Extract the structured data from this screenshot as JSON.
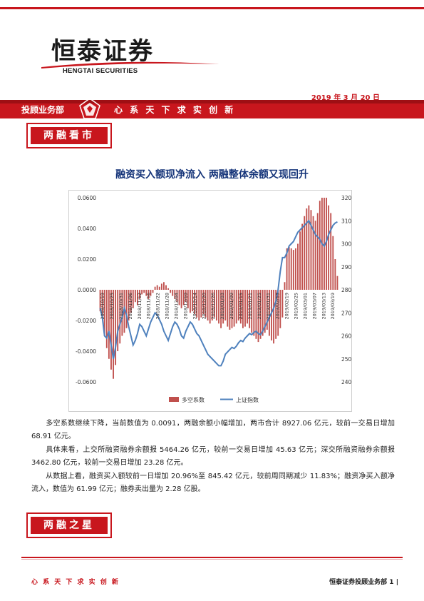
{
  "header": {
    "logo_cn": "恒泰证券",
    "logo_en": "HENGTAI SECURITIES",
    "date": "2019 年 3 月 20 日",
    "dept": "投顾业务部",
    "slogan": "心 系 天 下   求 实 创 新",
    "emblem": "hengtai-emblem-icon",
    "colors": {
      "brand_red": "#c8161d",
      "dark_red": "#9e0f14",
      "title_blue": "#16357a"
    }
  },
  "section1": {
    "title": "两融看市"
  },
  "article": {
    "title": "融资买入额现净流入  两融整体余额又现回升",
    "paragraphs": [
      "多空系数继续下降，当前数值为 0.0091，两融余额小幅增加，两市合计 8927.06 亿元，较前一交易日增加 68.91 亿元。",
      "具体来看，上交所融资融券余额报 5464.26 亿元，较前一交易日增加 45.63 亿元；深交所融资融券余额报 3462.80 亿元，较前一交易日增加 23.28 亿元。",
      "从数据上看，融资买入额较前一日增加 20.96%至 845.42 亿元，较前周同期减少 11.83%；融资净买入额净流入，数值为 61.99 亿元；融券卖出量为 2.28 亿股。"
    ]
  },
  "section2": {
    "title": "两融之星"
  },
  "footer": {
    "left": "心 系 天 下    求 实 创 新",
    "right": "恒泰证券投顾业务部 1 |"
  },
  "chart_data": {
    "type": "bar+line",
    "legend_position": "bottom",
    "grid": false,
    "x_tick_labels": [
      "2018/10/19",
      "2018/10/25",
      "2018/10/31",
      "2018/11/06",
      "2018/11/12",
      "2018/11/16",
      "2018/11/22",
      "2018/11/28",
      "2018/12/04",
      "2018/12/10",
      "2018/12/14",
      "2018/12/20",
      "2018/12/26",
      "2019/01/03",
      "2019/01/09",
      "2019/01/15",
      "2019/01/21",
      "2019/01/25",
      "2019/01/31",
      "2019/02/13",
      "2019/02/19",
      "2019/02/25",
      "2019/03/01",
      "2019/03/07",
      "2019/03/13",
      "2019/03/19"
    ],
    "left_axis": {
      "ylim": [
        -0.06,
        0.06
      ],
      "ticks": [
        "-0.0600",
        "-0.0400",
        "-0.0200",
        "0.0000",
        "0.0200",
        "0.0400",
        "0.0600"
      ]
    },
    "right_axis": {
      "ylim": [
        2400,
        3200
      ],
      "ticks": [
        "2400",
        "2500",
        "2600",
        "2700",
        "2800",
        "2900",
        "3000",
        "3100",
        "3200"
      ]
    },
    "series": [
      {
        "name": "多空系数",
        "type": "bar",
        "axis": "left",
        "color": "#c0504d",
        "values": [
          -0.014,
          -0.018,
          -0.03,
          -0.038,
          -0.045,
          -0.052,
          -0.058,
          -0.049,
          -0.04,
          -0.035,
          -0.03,
          -0.028,
          -0.025,
          -0.02,
          -0.015,
          -0.012,
          -0.008,
          -0.01,
          -0.006,
          -0.003,
          -0.002,
          -0.004,
          -0.006,
          -0.004,
          -0.002,
          0.002,
          0.003,
          0.002,
          0.004,
          0.005,
          0.003,
          0.001,
          -0.002,
          -0.004,
          -0.006,
          -0.008,
          -0.01,
          -0.012,
          -0.01,
          -0.008,
          -0.012,
          -0.015,
          -0.014,
          -0.016,
          -0.018,
          -0.02,
          -0.018,
          -0.016,
          -0.018,
          -0.02,
          -0.022,
          -0.02,
          -0.018,
          -0.02,
          -0.022,
          -0.025,
          -0.022,
          -0.02,
          -0.024,
          -0.026,
          -0.025,
          -0.024,
          -0.022,
          -0.02,
          -0.022,
          -0.025,
          -0.024,
          -0.022,
          -0.025,
          -0.028,
          -0.03,
          -0.032,
          -0.034,
          -0.032,
          -0.03,
          -0.028,
          -0.026,
          -0.03,
          -0.033,
          -0.035,
          -0.032,
          -0.03,
          -0.025,
          -0.018,
          0.005,
          0.027,
          0.028,
          0.027,
          0.026,
          0.027,
          0.03,
          0.038,
          0.043,
          0.048,
          0.053,
          0.055,
          0.052,
          0.048,
          0.045,
          0.05,
          0.058,
          0.06,
          0.06,
          0.06,
          0.055,
          0.05,
          0.035,
          0.02,
          0.009
        ]
      },
      {
        "name": "上证指数",
        "type": "line",
        "axis": "right",
        "color": "#4f81bd",
        "values": [
          2720,
          2680,
          2600,
          2590,
          2620,
          2560,
          2500,
          2550,
          2620,
          2650,
          2680,
          2720,
          2690,
          2640,
          2600,
          2560,
          2580,
          2610,
          2650,
          2640,
          2620,
          2600,
          2630,
          2660,
          2680,
          2700,
          2690,
          2670,
          2650,
          2620,
          2600,
          2580,
          2610,
          2640,
          2660,
          2650,
          2630,
          2600,
          2590,
          2620,
          2640,
          2660,
          2650,
          2630,
          2610,
          2600,
          2580,
          2560,
          2540,
          2520,
          2510,
          2500,
          2490,
          2480,
          2470,
          2470,
          2490,
          2520,
          2530,
          2540,
          2550,
          2545,
          2555,
          2570,
          2580,
          2575,
          2590,
          2600,
          2610,
          2605,
          2615,
          2620,
          2610,
          2605,
          2620,
          2640,
          2660,
          2680,
          2700,
          2720,
          2750,
          2800,
          2880,
          2940,
          2940,
          2960,
          2990,
          3000,
          3010,
          3030,
          3050,
          3060,
          3070,
          3080,
          3090,
          3100,
          3080,
          3060,
          3040,
          3030,
          3020,
          3000,
          2990,
          3010,
          3040,
          3060,
          3080,
          3090,
          3095
        ]
      }
    ]
  }
}
